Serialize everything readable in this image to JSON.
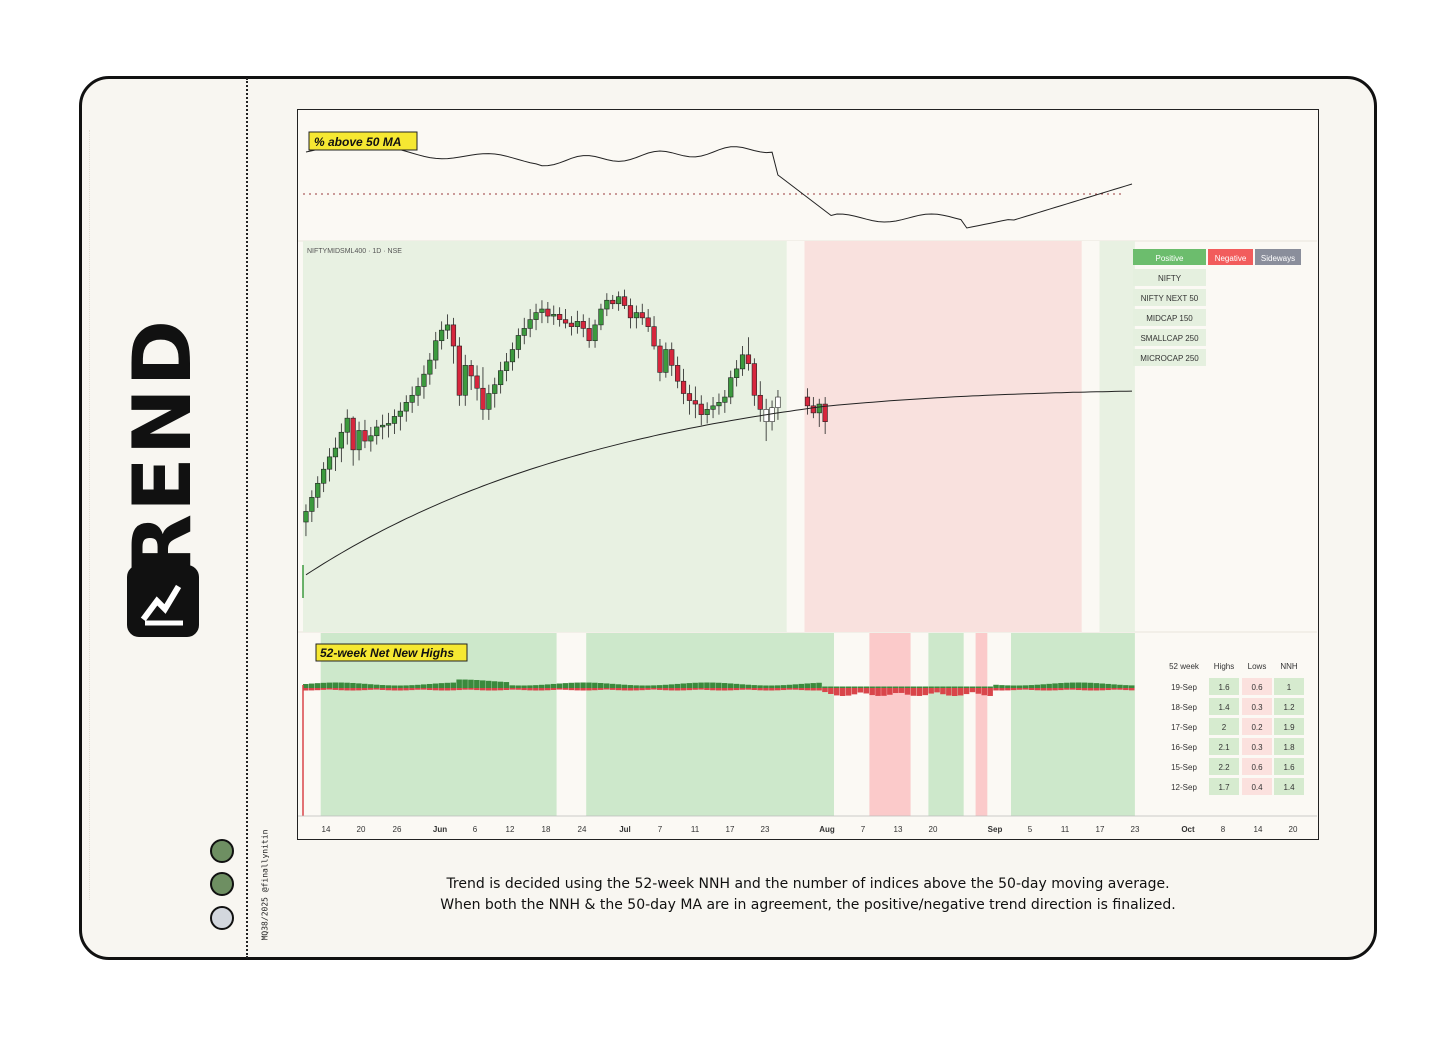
{
  "brand": {
    "word": "TREND"
  },
  "credit": "MQ38/2025 @finallynitin",
  "status_dots": [
    "#6e8f62",
    "#6e8f62",
    "#d3d7de"
  ],
  "caption": {
    "line1": "Trend is decided using the 52-week NNH and the number of indices above the 50-day moving average.",
    "line2": "When both the NNH & the 50-day MA are in agreement, the positive/negative trend direction is finalized."
  },
  "colors": {
    "positive": "#6cbd6d",
    "negative": "#f25c5c",
    "sideways": "#8a8e9b",
    "bull": "#3c9a3e",
    "bear": "#d7263d"
  },
  "chart_data": {
    "type": "candlestick",
    "panels": {
      "breadth": {
        "label": "% above 50 MA"
      },
      "price": {
        "label": "NIFTYMIDSML400 · 1D · NSE"
      },
      "nnh": {
        "label": "52-week Net New Highs"
      }
    },
    "x_tick_labels": [
      "14",
      "20",
      "26",
      "Jun",
      "6",
      "12",
      "18",
      "24",
      "Jul",
      "7",
      "11",
      "17",
      "23",
      "Aug",
      "7",
      "13",
      "20",
      "Sep",
      "5",
      "11",
      "17",
      "23",
      "Oct",
      "8",
      "14",
      "20"
    ],
    "regimes": [
      {
        "from": 0,
        "to": 82,
        "state": "Positive"
      },
      {
        "from": 82,
        "to": 85,
        "state": "none"
      },
      {
        "from": 85,
        "to": 132,
        "state": "Negative"
      },
      {
        "from": 132,
        "to": 135,
        "state": "none"
      },
      {
        "from": 135,
        "to": 141,
        "state": "Positive"
      }
    ],
    "candles_ohlc": [
      [
        1880,
        1890,
        1872,
        1886
      ],
      [
        1886,
        1898,
        1880,
        1894
      ],
      [
        1894,
        1906,
        1888,
        1902
      ],
      [
        1902,
        1914,
        1897,
        1910
      ],
      [
        1910,
        1922,
        1903,
        1917
      ],
      [
        1917,
        1928,
        1909,
        1922
      ],
      [
        1922,
        1936,
        1914,
        1931
      ],
      [
        1931,
        1944,
        1924,
        1939
      ],
      [
        1939,
        1940,
        1912,
        1921
      ],
      [
        1921,
        1937,
        1915,
        1932
      ],
      [
        1932,
        1938,
        1922,
        1926
      ],
      [
        1926,
        1934,
        1920,
        1929
      ],
      [
        1929,
        1938,
        1924,
        1934
      ],
      [
        1934,
        1941,
        1927,
        1935
      ],
      [
        1935,
        1942,
        1928,
        1936
      ],
      [
        1936,
        1944,
        1930,
        1940
      ],
      [
        1940,
        1948,
        1932,
        1943
      ],
      [
        1943,
        1952,
        1937,
        1948
      ],
      [
        1948,
        1957,
        1942,
        1952
      ],
      [
        1952,
        1962,
        1946,
        1957
      ],
      [
        1957,
        1969,
        1950,
        1964
      ],
      [
        1964,
        1976,
        1958,
        1972
      ],
      [
        1972,
        1988,
        1967,
        1983
      ],
      [
        1983,
        1994,
        1978,
        1989
      ],
      [
        1989,
        1998,
        1984,
        1992
      ],
      [
        1992,
        1996,
        1970,
        1980
      ],
      [
        1980,
        1985,
        1946,
        1952
      ],
      [
        1952,
        1975,
        1946,
        1969
      ],
      [
        1969,
        1972,
        1955,
        1963
      ],
      [
        1963,
        1969,
        1949,
        1956
      ],
      [
        1956,
        1968,
        1938,
        1944
      ],
      [
        1944,
        1958,
        1938,
        1953
      ],
      [
        1953,
        1962,
        1945,
        1958
      ],
      [
        1958,
        1971,
        1953,
        1966
      ],
      [
        1966,
        1976,
        1960,
        1971
      ],
      [
        1971,
        1982,
        1966,
        1978
      ],
      [
        1978,
        1990,
        1973,
        1986
      ],
      [
        1986,
        1996,
        1981,
        1990
      ],
      [
        1990,
        2001,
        1985,
        1995
      ],
      [
        1995,
        2004,
        1989,
        1999
      ],
      [
        1999,
        2006,
        1993,
        2001
      ],
      [
        2001,
        2005,
        1993,
        1997
      ],
      [
        1997,
        2003,
        1992,
        1998
      ],
      [
        1998,
        2002,
        1991,
        1995
      ],
      [
        1995,
        2001,
        1990,
        1993
      ],
      [
        1993,
        1997,
        1986,
        1991
      ],
      [
        1991,
        2000,
        1987,
        1994
      ],
      [
        1994,
        1998,
        1985,
        1990
      ],
      [
        1990,
        1996,
        1979,
        1983
      ],
      [
        1983,
        1995,
        1979,
        1992
      ],
      [
        1992,
        2004,
        1989,
        2001
      ],
      [
        2001,
        2010,
        1997,
        2006
      ],
      [
        2006,
        2009,
        2001,
        2004
      ],
      [
        2004,
        2011,
        2000,
        2008
      ],
      [
        2008,
        2012,
        2001,
        2003
      ],
      [
        2003,
        2007,
        1990,
        1996
      ],
      [
        1996,
        2003,
        1990,
        1999
      ],
      [
        1999,
        2004,
        1992,
        1996
      ],
      [
        1996,
        2001,
        1988,
        1991
      ],
      [
        1991,
        1997,
        1978,
        1980
      ],
      [
        1980,
        1984,
        1960,
        1965
      ],
      [
        1965,
        1982,
        1962,
        1978
      ],
      [
        1978,
        1982,
        1963,
        1969
      ],
      [
        1969,
        1974,
        1956,
        1960
      ],
      [
        1960,
        1967,
        1947,
        1953
      ],
      [
        1953,
        1958,
        1941,
        1949
      ],
      [
        1949,
        1957,
        1939,
        1947
      ],
      [
        1947,
        1952,
        1935,
        1941
      ],
      [
        1941,
        1948,
        1936,
        1944
      ],
      [
        1944,
        1951,
        1939,
        1946
      ],
      [
        1946,
        1953,
        1941,
        1948
      ],
      [
        1948,
        1955,
        1942,
        1951
      ],
      [
        1951,
        1966,
        1947,
        1962
      ],
      [
        1962,
        1972,
        1957,
        1967
      ],
      [
        1967,
        1980,
        1963,
        1975
      ],
      [
        1975,
        1985,
        1966,
        1970
      ],
      [
        1970,
        1973,
        1946,
        1952
      ],
      [
        1952,
        1960,
        1937,
        1944
      ],
      [
        1944,
        1950,
        1926,
        1937
      ],
      [
        1937,
        1949,
        1932,
        1945
      ],
      [
        1945,
        1955,
        1938,
        1951
      ],
      [
        1951,
        1956,
        1941,
        1946
      ],
      [
        1946,
        1951,
        1939,
        1942
      ],
      [
        1942,
        1950,
        1934,
        1947
      ],
      [
        1947,
        1951,
        1930,
        1937
      ]
    ],
    "candle_render_note": "",
    "sma50": [],
    "breadth_pct_above_50ma": [],
    "legend": {
      "states": [
        "Positive",
        "Negative",
        "Sideways"
      ],
      "indices": [
        "NIFTY",
        "NIFTY NEXT 50",
        "MIDCAP 150",
        "SMALLCAP 250",
        "MICROCAP 250"
      ]
    },
    "nnh_table": {
      "headers": [
        "52 week",
        "Highs",
        "Lows",
        "NNH"
      ],
      "rows": [
        [
          "19-Sep",
          "1.6",
          "0.6",
          "1"
        ],
        [
          "18-Sep",
          "1.4",
          "0.3",
          "1.2"
        ],
        [
          "17-Sep",
          "2",
          "0.2",
          "1.9"
        ],
        [
          "16-Sep",
          "2.1",
          "0.3",
          "1.8"
        ],
        [
          "15-Sep",
          "2.2",
          "0.6",
          "1.6"
        ],
        [
          "12-Sep",
          "1.7",
          "0.4",
          "1.4"
        ]
      ]
    }
  }
}
